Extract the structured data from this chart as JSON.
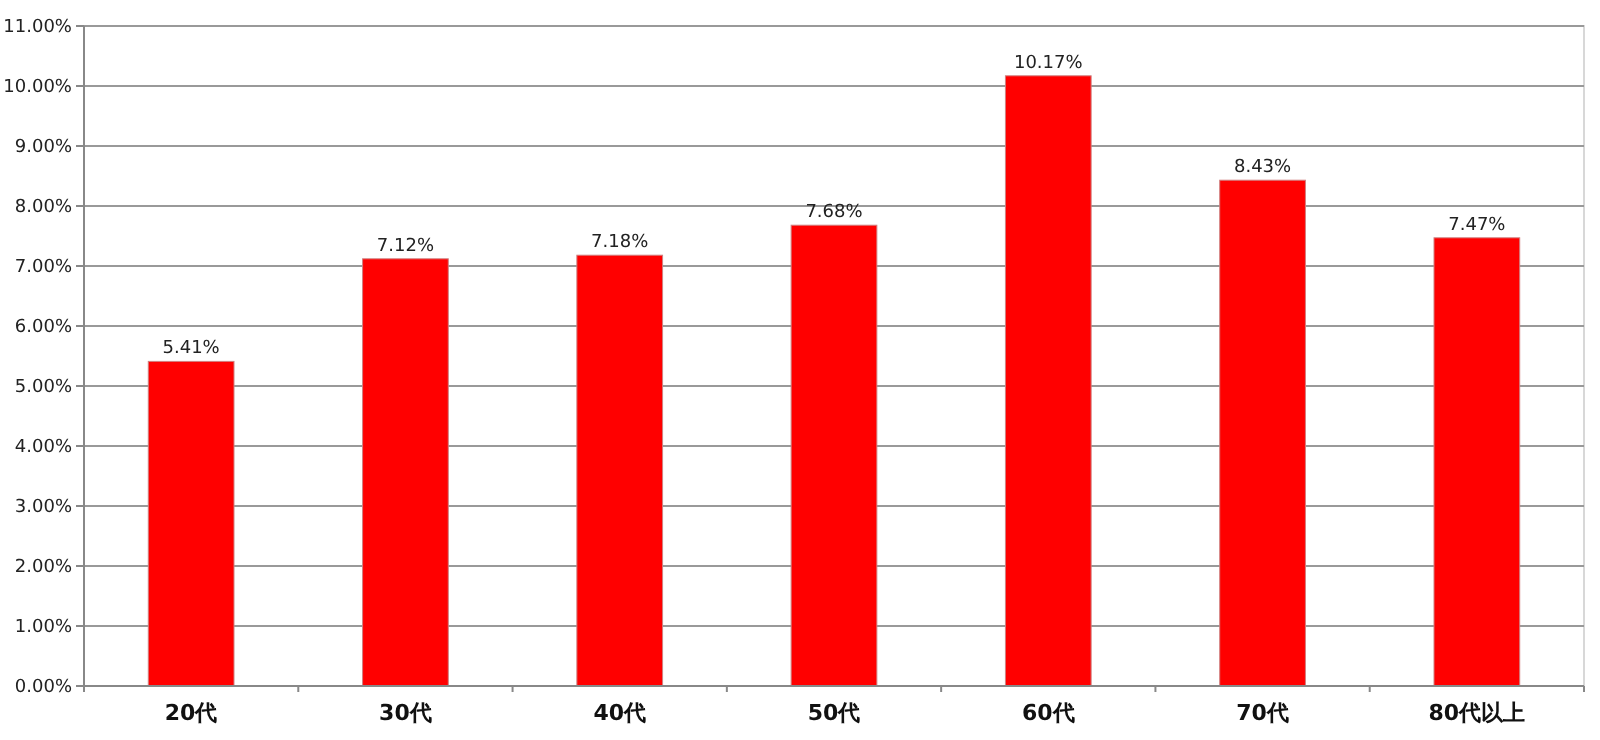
{
  "chart_data": {
    "type": "bar",
    "categories": [
      "20代",
      "30代",
      "40代",
      "50代",
      "60代",
      "70代",
      "80代以上"
    ],
    "values": [
      5.41,
      7.12,
      7.18,
      7.68,
      10.17,
      8.43,
      7.47
    ],
    "color": "#ff0000",
    "value_labels": [
      "5.41%",
      "7.12%",
      "7.18%",
      "7.68%",
      "10.17%",
      "8.43%",
      "7.47%"
    ],
    "ylim": [
      0,
      11
    ],
    "yticks": [
      {
        "value": 0,
        "label": "0.00%"
      },
      {
        "value": 1,
        "label": "1.00%"
      },
      {
        "value": 2,
        "label": "2.00%"
      },
      {
        "value": 3,
        "label": "3.00%"
      },
      {
        "value": 4,
        "label": "4.00%"
      },
      {
        "value": 5,
        "label": "5.00%"
      },
      {
        "value": 6,
        "label": "6.00%"
      },
      {
        "value": 7,
        "label": "7.00%"
      },
      {
        "value": 8,
        "label": "8.00%"
      },
      {
        "value": 9,
        "label": "9.00%"
      },
      {
        "value": 10,
        "label": "10.00%"
      },
      {
        "value": 11,
        "label": "11.00%"
      }
    ],
    "grid": "y"
  }
}
